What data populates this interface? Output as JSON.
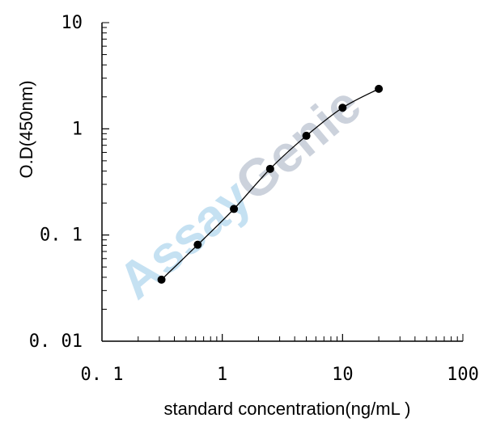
{
  "chart_data": {
    "type": "scatter",
    "xscale": "log",
    "yscale": "log",
    "xlim": [
      0.1,
      100
    ],
    "ylim": [
      0.01,
      10
    ],
    "xlabel": "standard concentration(ng/mL )",
    "ylabel": "O.D(450nm)",
    "grid": false,
    "legend": "none",
    "x_ticks": [
      0.1,
      1,
      10,
      100
    ],
    "x_tick_labels": [
      "0. 1",
      "1",
      "10",
      "100"
    ],
    "y_ticks": [
      0.01,
      0.1,
      1,
      10
    ],
    "y_tick_labels": [
      "0. 01",
      "0. 1",
      "1",
      "10"
    ],
    "series": [
      {
        "x": [
          0.3125,
          0.625,
          1.25,
          2.5,
          5,
          10,
          20
        ],
        "y": [
          0.038,
          0.081,
          0.176,
          0.42,
          0.86,
          1.58,
          2.38
        ],
        "marker": "circle",
        "line": "smooth",
        "color": "#000000"
      }
    ]
  },
  "watermark": {
    "part1": "Assay",
    "part2": "Genie",
    "color1": "#bcdcf0",
    "color2": "#c4cbd6"
  }
}
